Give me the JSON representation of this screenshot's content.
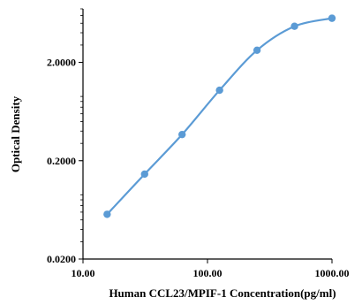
{
  "chart_data": {
    "type": "line",
    "title": "",
    "xlabel": "Human CCL23/MPIF-1 Concentration(pg/ml)",
    "ylabel": "Optical Density",
    "x_scale": "log",
    "y_scale": "log",
    "xlim": [
      10,
      1000
    ],
    "ylim": [
      0.02,
      7
    ],
    "x_ticks": [
      10,
      100,
      1000
    ],
    "x_tick_labels": [
      "10.00",
      "100.00",
      "1000.00"
    ],
    "y_ticks": [
      0.02,
      0.2,
      2.0
    ],
    "y_tick_labels": [
      "0.0200",
      "0.2000",
      "2.0000"
    ],
    "grid": false,
    "legend": "none",
    "line_color": "#5b9bd5",
    "marker": "circle",
    "series": [
      {
        "x": [
          15.625,
          31.25,
          62.5,
          125,
          250,
          500,
          1000
        ],
        "y": [
          0.057,
          0.146,
          0.369,
          1.041,
          2.657,
          4.655,
          5.618
        ]
      }
    ]
  }
}
